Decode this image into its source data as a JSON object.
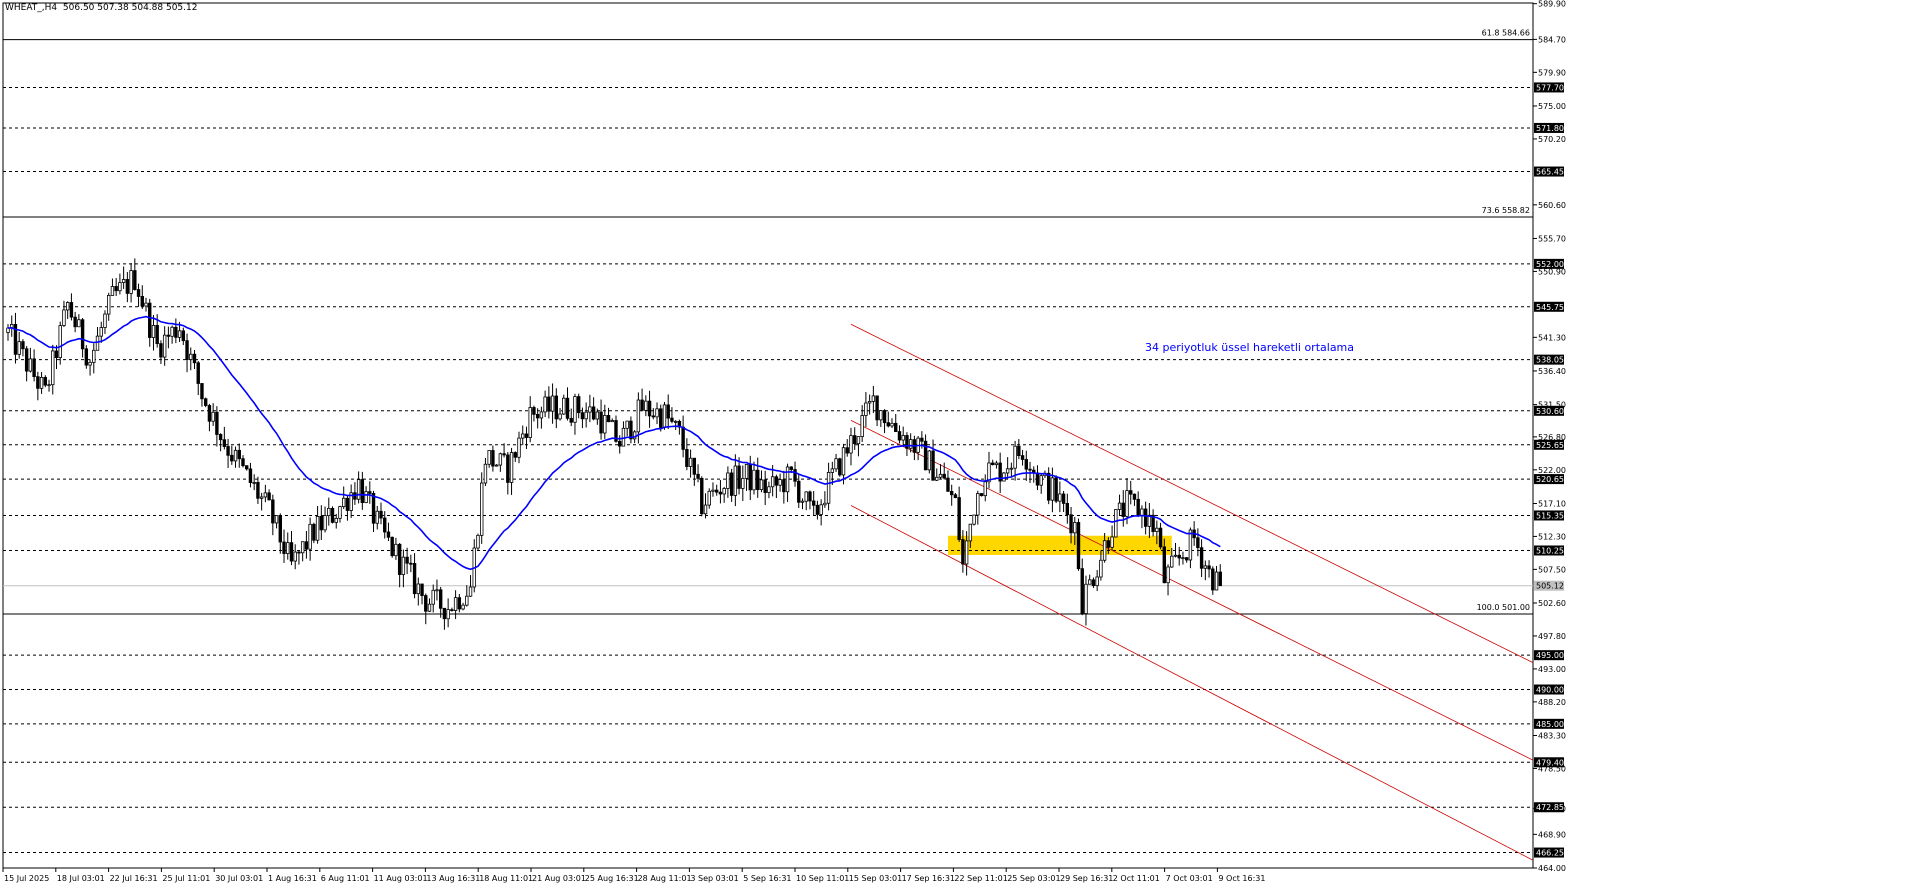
{
  "header": {
    "symbol": "WHEAT_,H4",
    "ohlc": "506.50 507.38 504.88 505.12"
  },
  "colors": {
    "ema": "#0000ff",
    "channel": "#cc0000",
    "zone": "#ffd700",
    "grid": "#000000",
    "background": "#ffffff"
  },
  "chart_data": {
    "type": "candlestick",
    "title": "WHEAT_,H4",
    "ylim": [
      464.0,
      590.0
    ],
    "y_ticks": [
      "589.90",
      "584.70",
      "579.90",
      "575.00",
      "570.20",
      "560.60",
      "555.70",
      "550.90",
      "541.30",
      "536.40",
      "531.50",
      "526.80",
      "522.00",
      "517.10",
      "512.30",
      "507.50",
      "502.60",
      "497.80",
      "493.00",
      "488.20",
      "483.30",
      "478.50",
      "472.70",
      "468.90",
      "464.00"
    ],
    "x_ticks": [
      "15 Jul 2025",
      "18 Jul 03:01",
      "22 Jul 16:31",
      "25 Jul 11:01",
      "30 Jul 03:01",
      "1 Aug 16:31",
      "6 Aug 11:01",
      "11 Aug 03:01",
      "13 Aug 16:31",
      "18 Aug 11:01",
      "21 Aug 03:01",
      "25 Aug 16:31",
      "28 Aug 11:01",
      "3 Sep 03:01",
      "5 Sep 16:31",
      "10 Sep 11:01",
      "15 Sep 03:01",
      "17 Sep 16:31",
      "22 Sep 11:01",
      "25 Sep 03:01",
      "29 Sep 16:31",
      "2 Oct 11:01",
      "7 Oct 03:01",
      "9 Oct 16:31"
    ],
    "current_price": {
      "value": 505.12,
      "label": "505.12"
    },
    "levels": [
      {
        "value": 552.0,
        "label": "552.00"
      },
      {
        "value": 545.75,
        "label": "545.75"
      },
      {
        "value": 538.05,
        "label": "538.05"
      },
      {
        "value": 530.6,
        "label": "530.60"
      },
      {
        "value": 525.65,
        "label": "525.65"
      },
      {
        "value": 520.65,
        "label": "520.65"
      },
      {
        "value": 515.35,
        "label": "515.35"
      },
      {
        "value": 510.25,
        "label": "510.25"
      },
      {
        "value": 495.0,
        "label": "495.00"
      },
      {
        "value": 490.0,
        "label": "490.00"
      },
      {
        "value": 485.0,
        "label": "485.00"
      },
      {
        "value": 479.4,
        "label": "479.40"
      },
      {
        "value": 472.85,
        "label": "472.85"
      },
      {
        "value": 466.25,
        "label": "466.25"
      },
      {
        "value": 577.7,
        "label": "577.70"
      },
      {
        "value": 571.8,
        "label": "571.80"
      },
      {
        "value": 565.45,
        "label": "565.45"
      }
    ],
    "fibonacci": [
      {
        "value": 584.66,
        "label": "61.8 584.66"
      },
      {
        "value": 558.82,
        "label": "73.6 558.82"
      },
      {
        "value": 501.0,
        "label": "100.0 501.00"
      }
    ],
    "annotation": "34 periyotluk üssel hareketli ortalama",
    "ema_period": 34,
    "support_zone": [
      509.6,
      512.4
    ],
    "channel": {
      "upper": [
        [
          0.0,
          543.2
        ],
        [
          1.0,
          493.6
        ]
      ],
      "middle": [
        [
          0.0,
          529.2
        ],
        [
          1.0,
          479.4
        ]
      ],
      "lower": [
        [
          0.0,
          516.8
        ],
        [
          1.0,
          464.8
        ]
      ]
    },
    "anchors": [
      [
        0,
        542
      ],
      [
        10,
        533
      ],
      [
        16,
        546
      ],
      [
        22,
        538
      ],
      [
        28,
        547
      ],
      [
        34,
        550
      ],
      [
        40,
        540
      ],
      [
        46,
        543
      ],
      [
        52,
        533
      ],
      [
        58,
        526
      ],
      [
        64,
        521
      ],
      [
        70,
        516
      ],
      [
        76,
        508
      ],
      [
        82,
        513
      ],
      [
        88,
        516
      ],
      [
        94,
        520
      ],
      [
        100,
        513
      ],
      [
        106,
        508
      ],
      [
        112,
        503
      ],
      [
        118,
        502
      ],
      [
        124,
        505
      ],
      [
        128,
        524
      ],
      [
        134,
        522
      ],
      [
        140,
        530
      ],
      [
        146,
        531
      ],
      [
        152,
        531
      ],
      [
        158,
        530
      ],
      [
        164,
        526
      ],
      [
        170,
        531
      ],
      [
        176,
        530
      ],
      [
        180,
        527
      ],
      [
        186,
        517
      ],
      [
        192,
        520
      ],
      [
        198,
        521
      ],
      [
        204,
        519
      ],
      [
        210,
        521
      ],
      [
        216,
        515
      ],
      [
        220,
        520
      ],
      [
        226,
        526
      ],
      [
        232,
        532
      ],
      [
        238,
        528
      ],
      [
        244,
        525
      ],
      [
        250,
        521
      ],
      [
        254,
        517
      ],
      [
        256,
        508
      ],
      [
        259,
        517
      ],
      [
        262,
        522
      ],
      [
        266,
        522
      ],
      [
        272,
        525
      ],
      [
        276,
        521
      ],
      [
        280,
        519
      ],
      [
        286,
        514
      ],
      [
        288,
        503
      ],
      [
        292,
        508
      ],
      [
        296,
        514
      ],
      [
        300,
        517
      ],
      [
        304,
        516
      ],
      [
        308,
        513
      ],
      [
        310,
        506
      ],
      [
        314,
        509
      ],
      [
        318,
        512
      ],
      [
        322,
        507
      ],
      [
        325,
        505.12
      ]
    ]
  }
}
